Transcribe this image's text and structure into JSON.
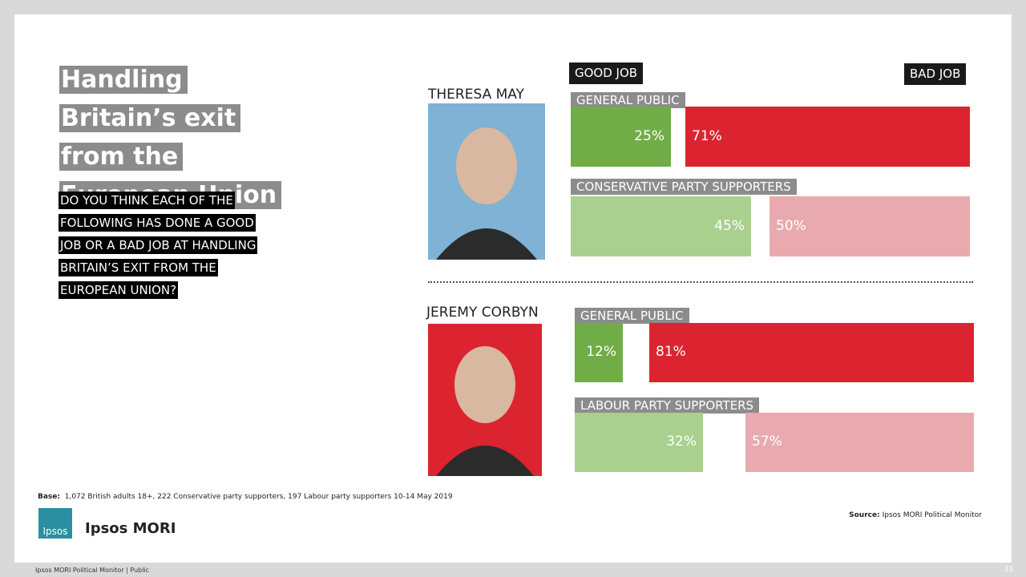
{
  "chart_data": {
    "type": "diverging-bar",
    "title": "Handling Britain’s exit from the European Union",
    "question": "DO YOU THINK EACH OF THE FOLLOWING HAS DONE A GOOD JOB OR A BAD JOB AT HANDLING BRITAIN’S EXIT FROM THE EUROPEAN UNION?",
    "series": [
      {
        "name": "GOOD JOB"
      },
      {
        "name": "BAD JOB"
      }
    ],
    "panels": [
      {
        "label": "THERESA MAY",
        "photo_color": "#7fb2d4",
        "groups": [
          {
            "name": "GENERAL PUBLIC",
            "values": [
              25,
              71
            ],
            "value_labels": [
              "25%",
              "71%"
            ],
            "colors": [
              "#70ad47",
              "#dc2430"
            ]
          },
          {
            "name": "CONSERVATIVE PARTY SUPPORTERS",
            "values": [
              45,
              50
            ],
            "value_labels": [
              "45%",
              "50%"
            ],
            "colors": [
              "#a9d08e",
              "#e8aaaf"
            ]
          }
        ]
      },
      {
        "label": "JEREMY CORBYN",
        "photo_color": "#dc2430",
        "groups": [
          {
            "name": "GENERAL PUBLIC",
            "values": [
              12,
              81
            ],
            "value_labels": [
              "12%",
              "81%"
            ],
            "colors": [
              "#70ad47",
              "#dc2430"
            ]
          },
          {
            "name": "LABOUR PARTY SUPPORTERS",
            "values": [
              32,
              57
            ],
            "value_labels": [
              "32%",
              "57%"
            ],
            "colors": [
              "#a9d08e",
              "#e8aaaf"
            ]
          }
        ]
      }
    ]
  },
  "base_label": "Base:",
  "base": "1,072 British adults 18+, 222 Conservative party supporters, 197 Labour party supporters 10-14 May 2019",
  "source_label": "Source:",
  "source": "Ipsos MORI Political Monitor",
  "logo_badge": "Ipsos",
  "logo_text": "Ipsos MORI",
  "footer": "Ipsos MORI Political Monitor | Public",
  "page_number": "33"
}
